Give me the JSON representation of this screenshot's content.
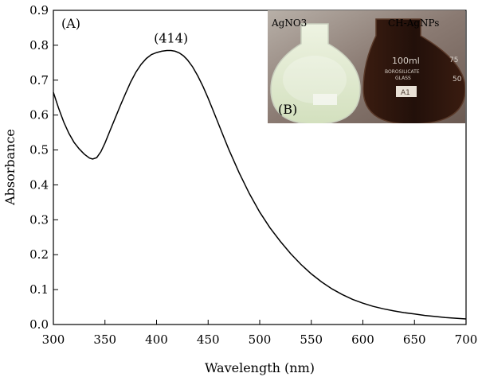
{
  "chart_data": {
    "type": "line",
    "xlabel": "Wavelength (nm)",
    "ylabel": "Absorbance",
    "xlim": [
      300,
      700
    ],
    "ylim": [
      0.0,
      0.9
    ],
    "xticks": [
      300,
      350,
      400,
      450,
      500,
      550,
      600,
      650,
      700
    ],
    "yticks": [
      0.0,
      0.1,
      0.2,
      0.3,
      0.4,
      0.5,
      0.6,
      0.7,
      0.8,
      0.9
    ],
    "xtick_labels": [
      "300",
      "350",
      "400",
      "450",
      "500",
      "550",
      "600",
      "650",
      "700"
    ],
    "ytick_labels": [
      "0.0",
      "0.1",
      "0.2",
      "0.3",
      "0.4",
      "0.5",
      "0.6",
      "0.7",
      "0.8",
      "0.9"
    ],
    "panel_label": "(A)",
    "peak_annotation": {
      "text": "(414)",
      "x": 414,
      "y": 0.785
    },
    "grid": false,
    "series": [
      {
        "color": "#000000",
        "x": [
          300,
          305,
          310,
          315,
          320,
          325,
          330,
          335,
          338,
          342,
          346,
          350,
          355,
          360,
          365,
          370,
          375,
          380,
          385,
          390,
          395,
          400,
          405,
          410,
          414,
          418,
          422,
          426,
          430,
          435,
          440,
          445,
          450,
          455,
          460,
          465,
          470,
          480,
          490,
          500,
          510,
          520,
          530,
          540,
          550,
          560,
          570,
          580,
          590,
          600,
          610,
          620,
          630,
          640,
          650,
          660,
          670,
          680,
          690,
          700
        ],
        "y": [
          0.665,
          0.62,
          0.58,
          0.548,
          0.522,
          0.503,
          0.488,
          0.477,
          0.474,
          0.478,
          0.495,
          0.52,
          0.556,
          0.592,
          0.628,
          0.662,
          0.695,
          0.723,
          0.745,
          0.762,
          0.773,
          0.779,
          0.783,
          0.785,
          0.785,
          0.783,
          0.778,
          0.77,
          0.758,
          0.738,
          0.712,
          0.682,
          0.648,
          0.612,
          0.575,
          0.538,
          0.502,
          0.435,
          0.375,
          0.322,
          0.277,
          0.238,
          0.203,
          0.172,
          0.145,
          0.122,
          0.102,
          0.086,
          0.072,
          0.061,
          0.052,
          0.045,
          0.039,
          0.034,
          0.03,
          0.026,
          0.023,
          0.02,
          0.018,
          0.016
        ]
      }
    ]
  },
  "inset_photo": {
    "panel_label": "(B)",
    "left_label": "AgNO3",
    "right_label": "CH-AgNPs",
    "flask_volume": "100ml",
    "flask_brand": "BOROSILICATE",
    "flask_glass": "GLASS",
    "flask_grad_1": "75",
    "flask_grad_2": "50",
    "flask_tag": "A1",
    "colors": {
      "left_liquid": "#dfe8cf",
      "right_liquid": "#2a140c",
      "background": "#8a7a72"
    }
  }
}
